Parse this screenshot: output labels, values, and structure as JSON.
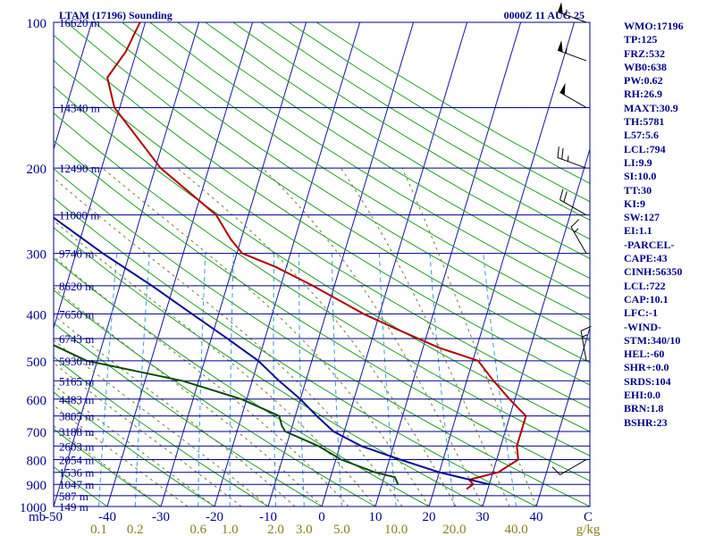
{
  "header": {
    "station": "LTAM (17196) Sounding",
    "time": "0000Z 11 AUG 25"
  },
  "indices": [
    "WMO:17196",
    "TP:125",
    "FRZ:532",
    "WB0:638",
    "PW:0.62",
    "RH:26.9",
    "MAXT:30.9",
    "TH:5781",
    "L57:5.6",
    "LCL:794",
    "LI:9.9",
    "SI:10.0",
    "TT:30",
    "KI:9",
    "SW:127",
    "EI:1.1",
    "-PARCEL-",
    "CAPE:43",
    "CINH:56350",
    "LCL:722",
    "CAP:10.1",
    "LFC:-1",
    "-WIND-",
    "STM:340/10",
    "HEL:-60",
    "SHR+:0.0",
    "SRDS:104",
    "EHI:0.0",
    "BRN:1.8",
    "BSHR:23"
  ],
  "chart_data": {
    "type": "line",
    "title": "LTAM (17196) Sounding",
    "subtitle": "0000Z 11 AUG 25",
    "x_axis": {
      "unit_label": "C",
      "ticks": [
        "-50",
        "-40",
        "-30",
        "-20",
        "-10",
        "0",
        "10",
        "20",
        "30",
        "40"
      ],
      "range": [
        -50,
        50
      ]
    },
    "y_axis": {
      "unit_label": "mb",
      "scale": "log-pressure",
      "ticks": [
        "100",
        "200",
        "300",
        "400",
        "500",
        "600",
        "700",
        "800",
        "900",
        "1000"
      ],
      "range": [
        1000,
        100
      ]
    },
    "mixing_ratio_axis": {
      "unit_label": "g/kg",
      "labels": [
        "0.1",
        "0.2",
        "0.6",
        "1.0",
        "2.0",
        "3.0",
        "5.0",
        "10.0",
        "20.0",
        "40.0"
      ]
    },
    "height_labels": [
      "16620 m",
      "14340 m",
      "12490 m",
      "11000 m",
      "9740 m",
      "8620 m",
      "7650 m",
      "6743 m",
      "5930 m",
      "5165 m",
      "4483 m",
      "3805 m",
      "3188 m",
      "2603 m",
      "2054 m",
      "1536 m",
      "1047 m",
      "587 m",
      "149 m"
    ],
    "series": [
      {
        "color": "#b00000",
        "points": [
          [
            920,
            26
          ],
          [
            900,
            27
          ],
          [
            880,
            26
          ],
          [
            850,
            31
          ],
          [
            800,
            34
          ],
          [
            750,
            33
          ],
          [
            700,
            33
          ],
          [
            650,
            33
          ],
          [
            600,
            29
          ],
          [
            550,
            25
          ],
          [
            500,
            21
          ],
          [
            470,
            13
          ],
          [
            430,
            4
          ],
          [
            400,
            -3
          ],
          [
            350,
            -14
          ],
          [
            320,
            -22
          ],
          [
            300,
            -29
          ],
          [
            280,
            -32
          ],
          [
            250,
            -36
          ],
          [
            200,
            -49
          ],
          [
            150,
            -61
          ],
          [
            130,
            -64
          ],
          [
            115,
            -62
          ],
          [
            100,
            -61
          ]
        ]
      },
      {
        "color": "#0a0a96",
        "points": [
          [
            900,
            30
          ],
          [
            850,
            20
          ],
          [
            800,
            12
          ],
          [
            750,
            4
          ],
          [
            700,
            -2
          ],
          [
            650,
            -6
          ],
          [
            600,
            -10
          ],
          [
            550,
            -15
          ],
          [
            500,
            -20
          ],
          [
            450,
            -27
          ],
          [
            400,
            -35
          ],
          [
            350,
            -44
          ],
          [
            300,
            -55
          ],
          [
            250,
            -67
          ],
          [
            200,
            -80
          ],
          [
            170,
            -88
          ],
          [
            150,
            -94
          ],
          [
            120,
            -106
          ],
          [
            110,
            -110
          ]
        ]
      },
      {
        "color": "#0b4a0b",
        "points": [
          [
            900,
            13
          ],
          [
            870,
            12
          ],
          [
            850,
            8
          ],
          [
            800,
            1
          ],
          [
            750,
            -4
          ],
          [
            700,
            -11
          ],
          [
            680,
            -12
          ],
          [
            650,
            -13
          ],
          [
            600,
            -21
          ],
          [
            550,
            -33
          ],
          [
            500,
            -52
          ],
          [
            450,
            -62
          ],
          [
            400,
            -70
          ]
        ]
      }
    ],
    "wind_barbs": [
      {
        "pressure": 800,
        "dir": 240,
        "speed": 10
      },
      {
        "pressure": 500,
        "dir": 350,
        "speed": 15
      },
      {
        "pressure": 300,
        "dir": 330,
        "speed": 15
      },
      {
        "pressure": 250,
        "dir": 300,
        "speed": 20
      },
      {
        "pressure": 200,
        "dir": 290,
        "speed": 25
      },
      {
        "pressure": 150,
        "dir": 300,
        "speed": 50
      },
      {
        "pressure": 120,
        "dir": 290,
        "speed": 55
      },
      {
        "pressure": 100,
        "dir": 290,
        "speed": 55
      }
    ]
  }
}
